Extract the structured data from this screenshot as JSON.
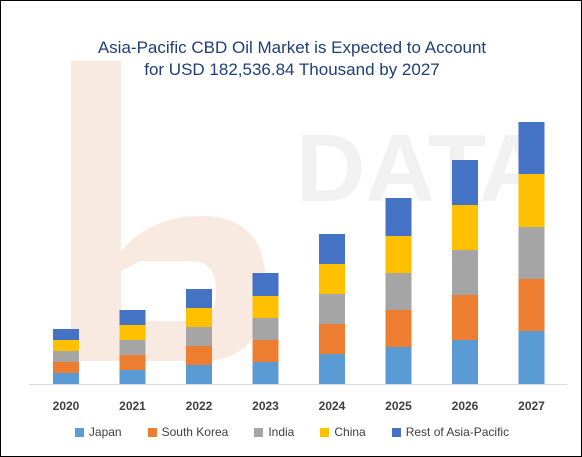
{
  "colors": {
    "japan": "#5b9bd5",
    "south_korea": "#ed7d31",
    "india": "#a5a5a5",
    "china": "#ffc000",
    "rest": "#4472c4",
    "watermark": "#f4d9c8",
    "axis": "#d9d9d9"
  },
  "chart_data": {
    "type": "bar",
    "stacked": true,
    "title_line1": "Asia-Pacific CBD Oil Market is Expected to Account",
    "title_line2": "for USD 182,536.84 Thousand  by 2027",
    "categories": [
      "2020",
      "2021",
      "2022",
      "2023",
      "2024",
      "2025",
      "2026",
      "2027"
    ],
    "series": [
      {
        "name": "Japan",
        "color": "#5b9bd5",
        "values": [
          11,
          14,
          19,
          22,
          30,
          37,
          44,
          53
        ]
      },
      {
        "name": "South Korea",
        "color": "#ed7d31",
        "values": [
          11,
          15,
          19,
          22,
          30,
          37,
          45,
          52
        ]
      },
      {
        "name": "India",
        "color": "#a5a5a5",
        "values": [
          11,
          15,
          19,
          22,
          30,
          37,
          45,
          52
        ]
      },
      {
        "name": "China",
        "color": "#ffc000",
        "values": [
          11,
          15,
          19,
          22,
          30,
          37,
          45,
          53
        ]
      },
      {
        "name": "Rest of Asia-Pacific",
        "color": "#4472c4",
        "values": [
          11,
          15,
          19,
          23,
          30,
          38,
          45,
          52
        ]
      }
    ],
    "ylim": [
      0,
      270
    ],
    "grid": false,
    "legend_position": "bottom"
  }
}
